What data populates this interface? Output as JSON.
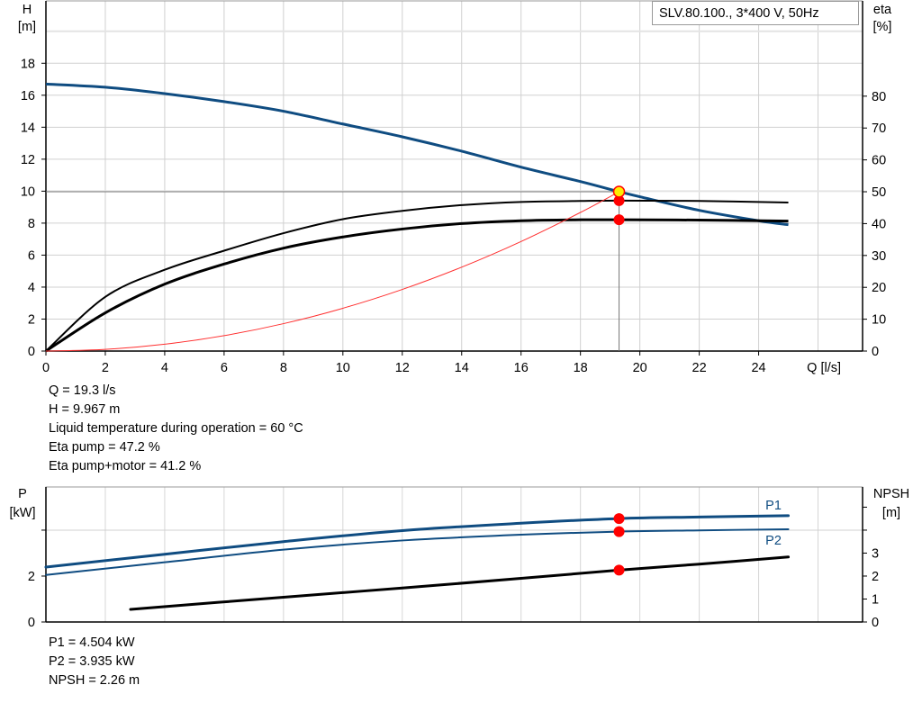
{
  "chart_data": [
    {
      "type": "line",
      "legend_title": "SLV.80.100., 3*400 V, 50Hz",
      "xlabel": "Q [l/s]",
      "ylabel_left": [
        "H",
        "[m]"
      ],
      "ylabel_right": [
        "eta",
        "[%]"
      ],
      "xlim": [
        0,
        27.5
      ],
      "ylim_left": [
        0,
        21.9
      ],
      "ylim_right": [
        0,
        109.9
      ],
      "xticks": [
        0,
        2,
        4,
        6,
        8,
        10,
        12,
        14,
        16,
        18,
        20,
        22,
        24
      ],
      "yticks_left": [
        0,
        2,
        4,
        6,
        8,
        10,
        12,
        14,
        16,
        18
      ],
      "yticks_right": [
        0,
        10,
        20,
        30,
        40,
        50,
        60,
        70,
        80
      ],
      "grid": true,
      "series": [
        {
          "id": "H",
          "axis": "left",
          "color": "#0f4c81",
          "x": [
            0,
            2,
            4,
            6,
            8,
            10,
            12,
            14,
            16,
            18,
            19.3,
            20,
            22,
            24,
            25
          ],
          "y": [
            16.7,
            16.5,
            16.1,
            15.6,
            15.0,
            14.2,
            13.4,
            12.5,
            11.5,
            10.6,
            9.967,
            9.65,
            8.8,
            8.15,
            7.9
          ]
        },
        {
          "id": "eta-pump",
          "axis": "right",
          "color": "#000000",
          "x": [
            0,
            2,
            4,
            6,
            8,
            10,
            12,
            14,
            16,
            18,
            19.3,
            22,
            25
          ],
          "y": [
            0,
            17,
            25.5,
            31.5,
            37,
            41.4,
            44,
            45.8,
            46.8,
            47.1,
            47.2,
            47.1,
            46.6
          ]
        },
        {
          "id": "eta-pump-motor",
          "axis": "right",
          "color": "#000000",
          "x": [
            0,
            2,
            4,
            6,
            8,
            10,
            12,
            14,
            16,
            18,
            19.3,
            22,
            25
          ],
          "y": [
            0,
            12,
            21,
            27.3,
            32.3,
            35.8,
            38.3,
            40,
            40.9,
            41.2,
            41.2,
            41.1,
            40.8
          ]
        },
        {
          "id": "system-curve",
          "axis": "left",
          "color": "#ff3030",
          "x": [
            0,
            2,
            4,
            6,
            8,
            10,
            12,
            14,
            16,
            18,
            19.3
          ],
          "y": [
            0,
            0.107,
            0.428,
            0.963,
            1.713,
            2.676,
            3.853,
            5.245,
            6.85,
            8.67,
            9.967
          ]
        }
      ],
      "operating_point": {
        "Q": 19.3,
        "H": 9.967,
        "eta_pump": 47.2,
        "eta_pump_motor": 41.2
      },
      "readout": [
        "Q = 19.3 l/s",
        "H = 9.967 m",
        "Liquid temperature during operation = 60 °C",
        "Eta pump = 47.2 %",
        "Eta pump+motor = 41.2 %"
      ]
    },
    {
      "type": "line",
      "ylabel_left": [
        "P",
        "[kW]"
      ],
      "ylabel_right": [
        "NPSH",
        "[m]"
      ],
      "xlim": [
        0,
        27.5
      ],
      "ylim_left": [
        0,
        5.88
      ],
      "ylim_right": [
        0,
        5.88
      ],
      "yticks_left": [
        0,
        2,
        4
      ],
      "yticks_left_labels": [
        "0",
        "2",
        ""
      ],
      "yticks_right": [
        0,
        1,
        2,
        3,
        4,
        5
      ],
      "yticks_right_labels": [
        "0",
        "1",
        "2",
        "3",
        "",
        ""
      ],
      "grid": true,
      "series": [
        {
          "id": "P1",
          "name": "P1",
          "axis": "left",
          "color": "#0f4c81",
          "x": [
            0,
            4,
            8,
            12,
            16,
            19.3,
            22,
            25
          ],
          "y": [
            2.39,
            2.95,
            3.5,
            3.98,
            4.3,
            4.504,
            4.57,
            4.63
          ]
        },
        {
          "id": "P2",
          "name": "P2",
          "axis": "left",
          "color": "#0f4c81",
          "x": [
            0,
            4,
            8,
            12,
            16,
            19.3,
            22,
            25
          ],
          "y": [
            2.05,
            2.6,
            3.15,
            3.55,
            3.8,
            3.935,
            3.99,
            4.04
          ]
        },
        {
          "id": "NPSH",
          "axis": "right",
          "color": "#000000",
          "x": [
            2.85,
            8,
            12,
            16,
            19.3,
            22,
            25
          ],
          "y": [
            0.55,
            1.08,
            1.48,
            1.9,
            2.26,
            2.52,
            2.83
          ]
        }
      ],
      "operating_point": {
        "Q": 19.3,
        "P1": 4.504,
        "P2": 3.935,
        "NPSH": 2.26
      },
      "readout": [
        "P1 = 4.504 kW",
        "P2 = 3.935 kW",
        "NPSH = 2.26 m"
      ]
    }
  ]
}
